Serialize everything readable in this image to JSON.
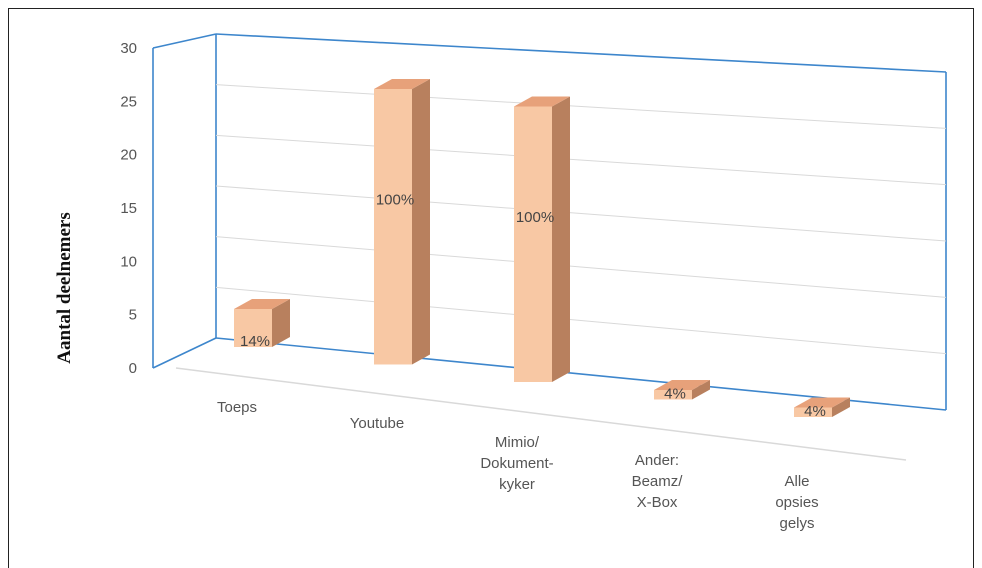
{
  "chart_data": {
    "type": "bar",
    "ylabel": "Aantal deelnemers",
    "ylim": [
      0,
      30
    ],
    "yticks": [
      0,
      5,
      10,
      15,
      20,
      25,
      30
    ],
    "categories": [
      [
        "Toeps"
      ],
      [
        "Youtube"
      ],
      [
        "Mimio/",
        "Dokument-",
        "kyker"
      ],
      [
        "Ander:",
        "Beamz/",
        "X-Box"
      ],
      [
        "Alle",
        "opsies",
        "gelys"
      ]
    ],
    "values": [
      4,
      29,
      29,
      1,
      1
    ],
    "data_labels": [
      "14%",
      "100%",
      "100%",
      "4%",
      "4%"
    ],
    "grid": true,
    "legend": "none",
    "colors": {
      "bar_front": "#F8C8A4",
      "bar_side": "#B8805E",
      "bar_top": "#E7A17A",
      "frame": "#3D86CC",
      "grid": "#D9D9D9"
    }
  }
}
